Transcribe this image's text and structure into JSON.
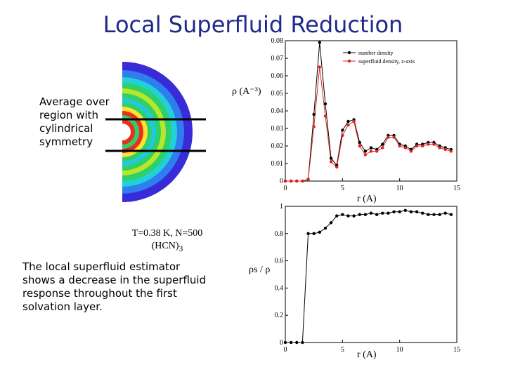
{
  "slide": {
    "title": "Local Superfluid Reduction",
    "region_note": "Average over region with cylindrical symmetry",
    "density_caption": "T=0.38 K, N=500 (HCN)",
    "density_caption_sub": "3",
    "bottom_note": "The local superfluid estimator shows a decrease in the superfluid response throughout the first solvation layer."
  },
  "colors": {
    "title": "#1f2a8a",
    "number_density": "#000000",
    "superfluid_density": "#e02020"
  },
  "chart_data": [
    {
      "type": "line",
      "title": "",
      "xlabel": "r (A)",
      "ylabel": "ρ (A⁻³)",
      "xlim": [
        0,
        15
      ],
      "ylim": [
        0,
        0.08
      ],
      "xticks": [
        "0",
        "5",
        "10",
        "15"
      ],
      "yticks": [
        "0",
        "0.01",
        "0.02",
        "0.03",
        "0.04",
        "0.05",
        "0.06",
        "0.07",
        "0.08"
      ],
      "legend_position": "top-right",
      "x": [
        0,
        0.5,
        1.0,
        1.5,
        2.0,
        2.5,
        3.0,
        3.5,
        4.0,
        4.5,
        5.0,
        5.5,
        6.0,
        6.5,
        7.0,
        7.5,
        8.0,
        8.5,
        9.0,
        9.5,
        10.0,
        10.5,
        11.0,
        11.5,
        12.0,
        12.5,
        13.0,
        13.5,
        14.0,
        14.5
      ],
      "series": [
        {
          "name": "number density",
          "values": [
            0,
            0,
            0,
            0,
            0.001,
            0.038,
            0.079,
            0.044,
            0.013,
            0.009,
            0.029,
            0.034,
            0.035,
            0.022,
            0.017,
            0.019,
            0.018,
            0.021,
            0.026,
            0.026,
            0.021,
            0.02,
            0.018,
            0.021,
            0.021,
            0.022,
            0.022,
            0.02,
            0.019,
            0.018
          ]
        },
        {
          "name": "superfluid density, z-axis",
          "values": [
            0,
            0,
            0,
            0,
            0.001,
            0.031,
            0.065,
            0.037,
            0.011,
            0.008,
            0.026,
            0.032,
            0.034,
            0.02,
            0.015,
            0.017,
            0.017,
            0.019,
            0.025,
            0.025,
            0.02,
            0.019,
            0.017,
            0.02,
            0.02,
            0.021,
            0.021,
            0.019,
            0.018,
            0.017
          ]
        }
      ]
    },
    {
      "type": "line",
      "title": "",
      "xlabel": "r (A)",
      "ylabel": "ρs / ρ",
      "xlim": [
        0,
        15
      ],
      "ylim": [
        0,
        1
      ],
      "xticks": [
        "0",
        "5",
        "10",
        "15"
      ],
      "yticks": [
        "0",
        "0.2",
        "0.4",
        "0.6",
        "0.8",
        "1"
      ],
      "x": [
        0,
        0.5,
        1.0,
        1.5,
        2.0,
        2.5,
        3.0,
        3.5,
        4.0,
        4.5,
        5.0,
        5.5,
        6.0,
        6.5,
        7.0,
        7.5,
        8.0,
        8.5,
        9.0,
        9.5,
        10.0,
        10.5,
        11.0,
        11.5,
        12.0,
        12.5,
        13.0,
        13.5,
        14.0,
        14.5
      ],
      "series": [
        {
          "name": "superfluid fraction",
          "values": [
            0,
            0,
            0,
            0,
            0.8,
            0.8,
            0.81,
            0.84,
            0.88,
            0.93,
            0.94,
            0.93,
            0.93,
            0.94,
            0.94,
            0.95,
            0.94,
            0.95,
            0.95,
            0.96,
            0.96,
            0.97,
            0.96,
            0.96,
            0.95,
            0.94,
            0.94,
            0.94,
            0.95,
            0.94
          ]
        }
      ]
    }
  ]
}
